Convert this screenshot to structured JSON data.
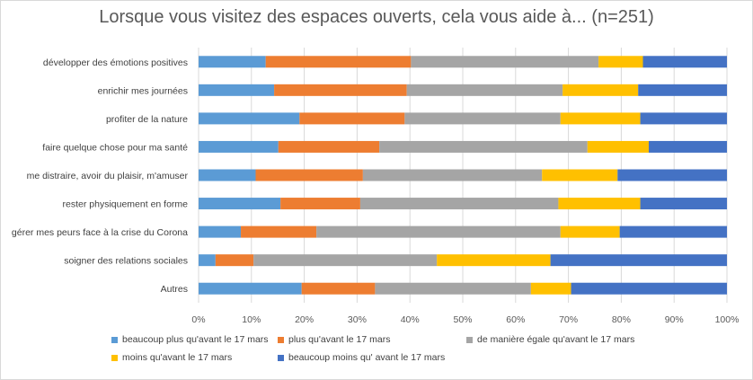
{
  "chart_data": {
    "type": "bar",
    "orientation": "horizontal",
    "stacked": "percent",
    "title": "Lorsque vous visitez des espaces ouverts, cela vous aide à... (n=251)",
    "categories": [
      "développer des émotions positives",
      "enrichir mes journées",
      "profiter de la nature",
      "faire quelque chose pour ma santé",
      "me distraire, avoir du plaisir, m'amuser",
      "rester physiquement en forme",
      "gérer mes peurs face à la crise du Corona",
      "soigner des relations sociales",
      "Autres"
    ],
    "series": [
      {
        "name": "beaucoup plus qu'avant le 17 mars",
        "color": "#5B9BD5",
        "values": [
          12.7,
          14.3,
          19.1,
          15.1,
          10.8,
          15.5,
          8.0,
          3.2,
          19.5
        ]
      },
      {
        "name": "plus qu'avant le 17 mars",
        "color": "#ED7D31",
        "values": [
          27.5,
          25.1,
          19.9,
          19.1,
          20.3,
          15.1,
          14.3,
          7.2,
          13.9
        ]
      },
      {
        "name": "de manière égale qu'avant le 17 mars",
        "color": "#A5A5A5",
        "values": [
          35.5,
          29.5,
          29.5,
          39.4,
          33.9,
          37.5,
          46.2,
          34.7,
          29.5
        ]
      },
      {
        "name": "moins qu'avant le 17 mars",
        "color": "#FFC000",
        "values": [
          8.4,
          14.3,
          15.1,
          11.6,
          14.3,
          15.5,
          11.2,
          21.5,
          7.6
        ]
      },
      {
        "name": "beaucoup moins qu' avant le 17 mars",
        "color": "#4472C4",
        "values": [
          15.9,
          16.8,
          16.4,
          14.8,
          20.7,
          16.4,
          20.3,
          33.4,
          29.5
        ]
      }
    ],
    "xlim": [
      0,
      100
    ],
    "xticks": [
      "0%",
      "10%",
      "20%",
      "30%",
      "40%",
      "50%",
      "60%",
      "70%",
      "80%",
      "90%",
      "100%"
    ],
    "grid": true,
    "legend_position": "bottom"
  }
}
